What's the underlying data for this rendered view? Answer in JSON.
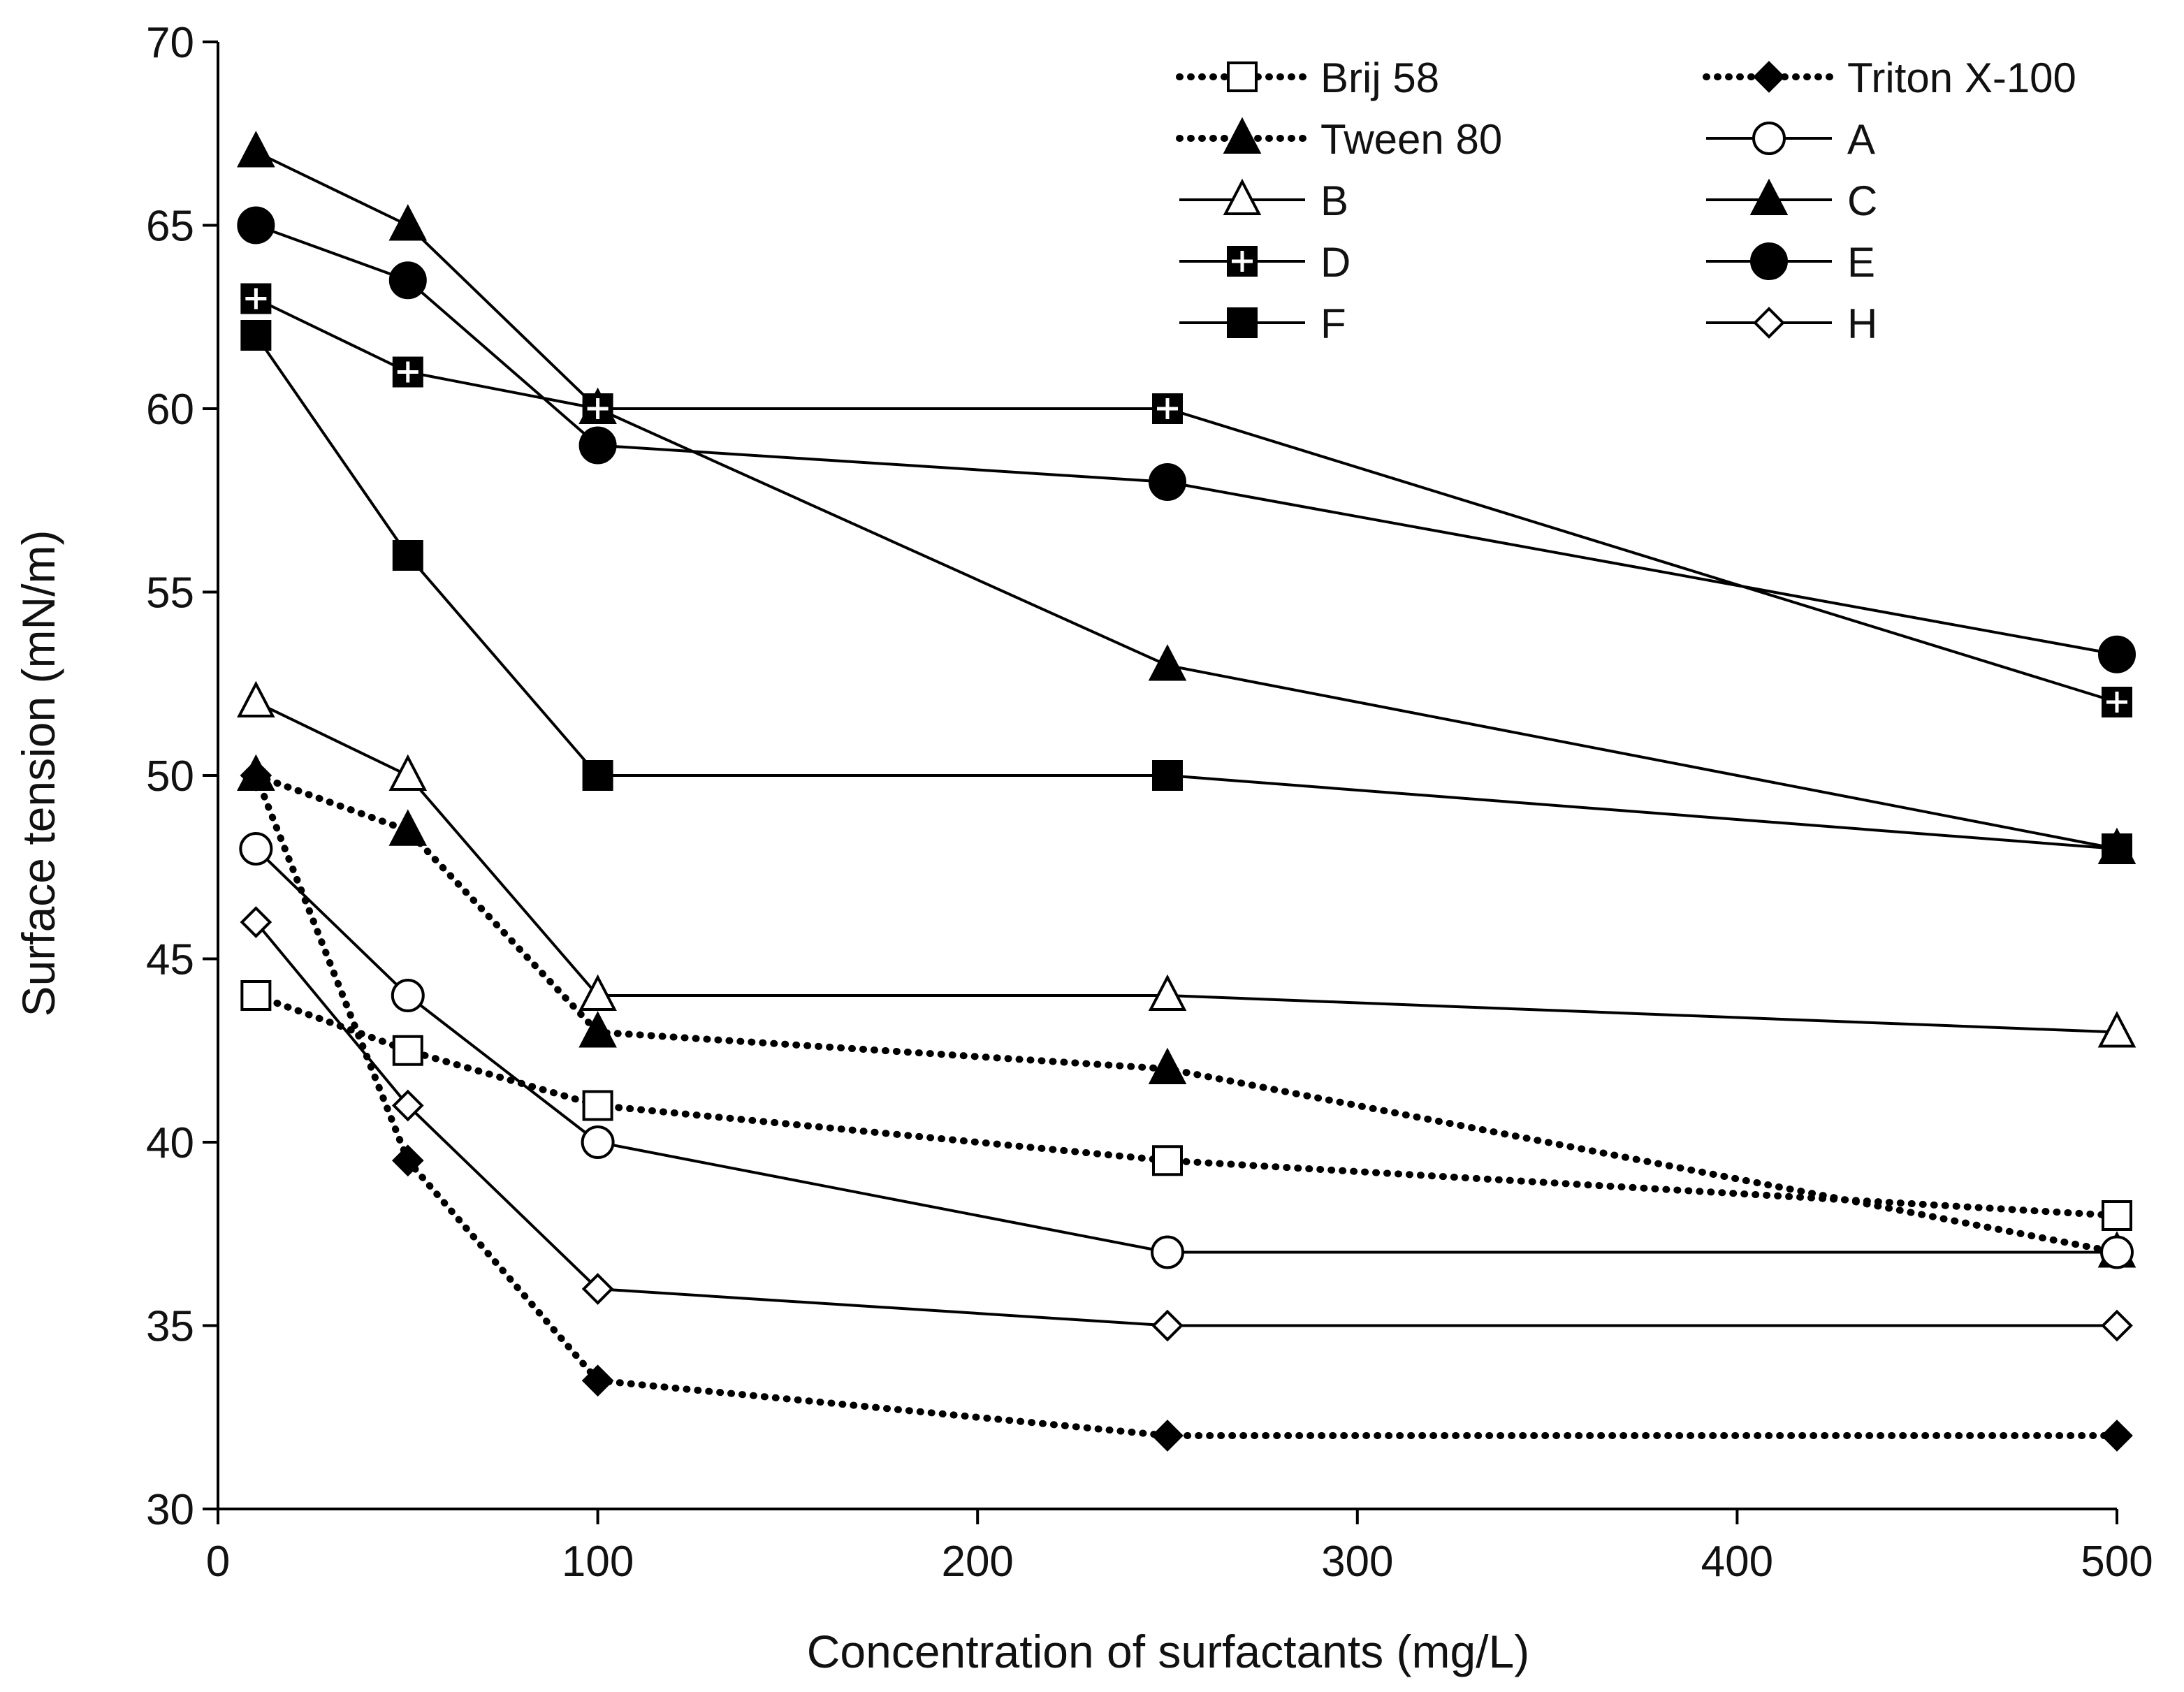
{
  "chart_data": {
    "type": "line",
    "title": "",
    "xlabel": "Concentration of surfactants (mg/L)",
    "ylabel": "Surface tension (mN/m)",
    "xlim": [
      0,
      500
    ],
    "ylim": [
      30,
      70
    ],
    "xticks": [
      0,
      100,
      200,
      300,
      400,
      500
    ],
    "yticks": [
      30,
      35,
      40,
      45,
      50,
      55,
      60,
      65,
      70
    ],
    "x": [
      10,
      50,
      100,
      250,
      500
    ],
    "grid": false,
    "legend_position": "top-right",
    "series": [
      {
        "name": "Brij 58",
        "line": "dotted",
        "marker": "square-open",
        "values": [
          44,
          42.5,
          41,
          39.5,
          38
        ]
      },
      {
        "name": "Triton X-100",
        "line": "dotted",
        "marker": "diamond-filled",
        "values": [
          50,
          39.5,
          33.5,
          32,
          32
        ]
      },
      {
        "name": "Tween 80",
        "line": "dotted",
        "marker": "triangle-filled",
        "values": [
          50,
          48.5,
          43,
          42,
          37
        ]
      },
      {
        "name": "A",
        "line": "solid",
        "marker": "circle-open",
        "values": [
          48,
          44,
          40,
          37,
          37
        ]
      },
      {
        "name": "B",
        "line": "solid",
        "marker": "triangle-open",
        "values": [
          52,
          50,
          44,
          44,
          43
        ]
      },
      {
        "name": "C",
        "line": "solid",
        "marker": "triangle-filled",
        "values": [
          67,
          65,
          60,
          53,
          48
        ]
      },
      {
        "name": "D",
        "line": "solid",
        "marker": "square-cross",
        "values": [
          63,
          61,
          60,
          60,
          52
        ]
      },
      {
        "name": "E",
        "line": "solid",
        "marker": "circle-filled",
        "values": [
          65,
          63.5,
          59,
          58,
          53.3
        ]
      },
      {
        "name": "F",
        "line": "solid",
        "marker": "square-filled",
        "values": [
          62,
          56,
          50,
          50,
          48
        ]
      },
      {
        "name": "H",
        "line": "solid",
        "marker": "diamond-open",
        "values": [
          46,
          41,
          36,
          35,
          35
        ]
      }
    ],
    "colors": {
      "line": "#000000",
      "fill": "#000000",
      "open_fill": "#ffffff"
    }
  }
}
